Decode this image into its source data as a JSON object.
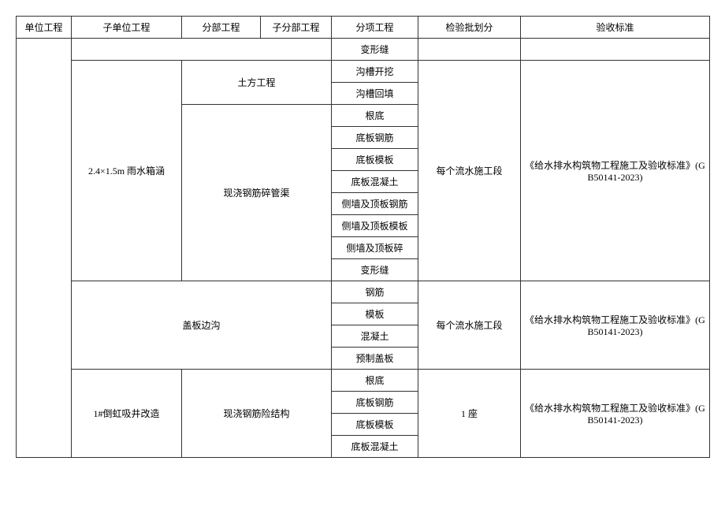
{
  "headers": [
    "单位工程",
    "子单位工程",
    "分部工程",
    "子分部工程",
    "分项工程",
    "检验批划分",
    "验收标准"
  ],
  "sub1": {
    "name": "2.4×1.5m 雨水箱涵",
    "standard": "《给水排水构筑物工程施工及验收标准》(GB50141-2023)",
    "lot": "每个流水施工段",
    "div_a": "土方工程",
    "div_b": "现浇钢筋碎管渠",
    "items_top": "变形缝",
    "items_a": [
      "沟槽开挖",
      "沟槽回填"
    ],
    "items_b": [
      "根底",
      "底板钢筋",
      "底板模板",
      "底板混凝土",
      "侧墙及顶板钢筋",
      "侧墙及顶板模板",
      "侧墙及顶板碎",
      "变形缝"
    ]
  },
  "sub2": {
    "name": "盖板边沟",
    "standard": "《给水排水构筑物工程施工及验收标准》(GB50141-2023)",
    "lot": "每个流水施工段",
    "items": [
      "钢筋",
      "模板",
      "混凝土",
      "预制盖板"
    ]
  },
  "sub3": {
    "name": "1#倒虹吸井改造",
    "div": "现浇钢筋险结构",
    "standard": "《给水排水构筑物工程施工及验收标准》(GB50141-2023)",
    "lot": "1 座",
    "items": [
      "根底",
      "底板钢筋",
      "底板模板",
      "底板混凝土"
    ]
  }
}
